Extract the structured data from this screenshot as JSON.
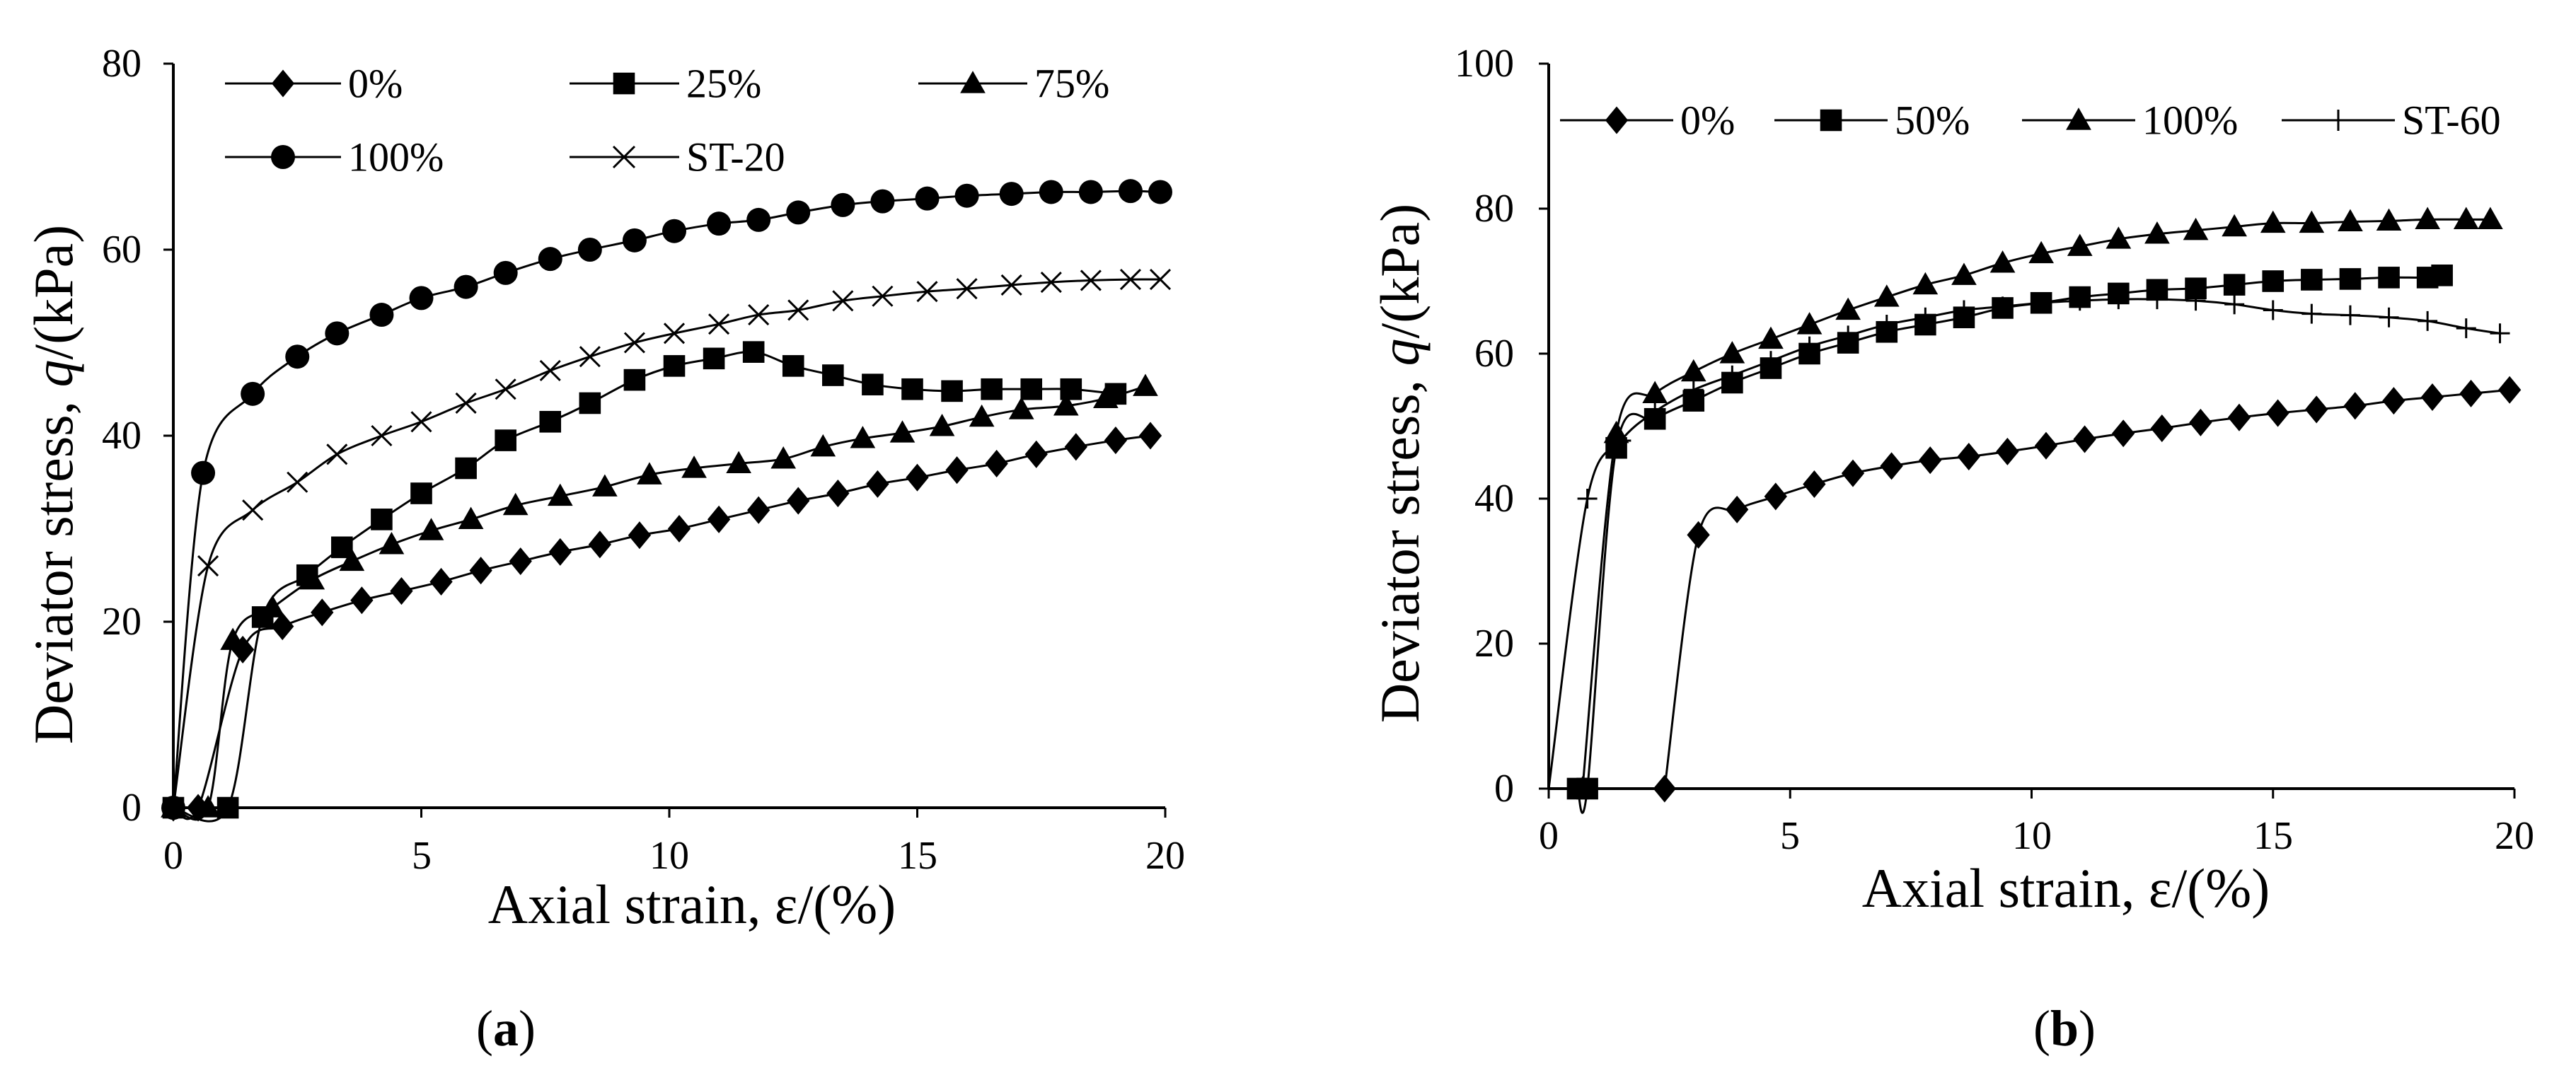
{
  "colors": {
    "ink": "#000000",
    "background": "#ffffff"
  },
  "chart_data": [
    {
      "panel": "a",
      "panel_label": "a",
      "type": "line",
      "xlabel": "Axial strain, ε/(%)",
      "ylabel_prefix": "Deviator stress, ",
      "ylabel_italic": "q",
      "ylabel_suffix": "/(kPa)",
      "xlim": [
        0,
        20
      ],
      "ylim": [
        0,
        80
      ],
      "xticks": [
        0,
        5,
        10,
        15,
        20
      ],
      "yticks": [
        0,
        20,
        40,
        60,
        80
      ],
      "grid": false,
      "legend": "top-left, inside",
      "series": [
        {
          "name": "0%",
          "marker": "diamond",
          "x": [
            0,
            0.5,
            1.4,
            2.2,
            3.0,
            3.8,
            4.6,
            5.4,
            6.2,
            7.0,
            7.8,
            8.6,
            9.4,
            10.2,
            11.0,
            11.8,
            12.6,
            13.4,
            14.2,
            15.0,
            15.8,
            16.6,
            17.4,
            18.2,
            19.0,
            19.7
          ],
          "y": [
            0,
            0,
            17,
            19.5,
            21,
            22.3,
            23.3,
            24.3,
            25.5,
            26.5,
            27.5,
            28.3,
            29.3,
            30,
            31,
            32,
            33,
            33.8,
            34.8,
            35.5,
            36.3,
            37,
            38,
            38.8,
            39.5,
            40
          ]
        },
        {
          "name": "25%",
          "marker": "square",
          "x": [
            0,
            1.1,
            1.8,
            2.7,
            3.4,
            4.2,
            5.0,
            5.9,
            6.7,
            7.6,
            8.4,
            9.3,
            10.1,
            10.9,
            11.7,
            12.5,
            13.3,
            14.1,
            14.9,
            15.7,
            16.5,
            17.3,
            18.1,
            19.0
          ],
          "y": [
            0,
            0,
            20.5,
            25,
            28,
            31,
            33.8,
            36.5,
            39.5,
            41.5,
            43.5,
            46,
            47.5,
            48.3,
            49,
            47.5,
            46.5,
            45.5,
            45,
            44.8,
            45,
            45,
            45,
            44.5
          ]
        },
        {
          "name": "75%",
          "marker": "triangle",
          "x": [
            0,
            0.7,
            1.2,
            2.0,
            2.8,
            3.6,
            4.4,
            5.2,
            6.0,
            6.9,
            7.8,
            8.7,
            9.6,
            10.5,
            11.4,
            12.3,
            13.1,
            13.9,
            14.7,
            15.5,
            16.3,
            17.1,
            18.0,
            18.8,
            19.6
          ],
          "y": [
            0,
            0,
            18,
            21.5,
            24.5,
            26.5,
            28.3,
            29.8,
            31,
            32.5,
            33.5,
            34.5,
            35.8,
            36.5,
            37,
            37.5,
            38.8,
            39.7,
            40.3,
            41,
            42,
            42.8,
            43.2,
            44,
            45.3
          ]
        },
        {
          "name": "100%",
          "marker": "circle",
          "x": [
            0,
            0.6,
            1.6,
            2.5,
            3.3,
            4.2,
            5.0,
            5.9,
            6.7,
            7.6,
            8.4,
            9.3,
            10.1,
            11.0,
            11.8,
            12.6,
            13.5,
            14.3,
            15.2,
            16.0,
            16.9,
            17.7,
            18.5,
            19.3,
            19.9
          ],
          "y": [
            0,
            36,
            44.5,
            48.5,
            51,
            53,
            54.8,
            56,
            57.5,
            59,
            60,
            61,
            62,
            62.8,
            63.2,
            64,
            64.8,
            65.2,
            65.5,
            65.8,
            66,
            66.2,
            66.2,
            66.3,
            66.2
          ]
        },
        {
          "name": "ST-20",
          "marker": "cross",
          "x": [
            0,
            0.7,
            1.6,
            2.5,
            3.3,
            4.2,
            5.0,
            5.9,
            6.7,
            7.6,
            8.4,
            9.3,
            10.1,
            11.0,
            11.8,
            12.6,
            13.5,
            14.3,
            15.2,
            16.0,
            16.9,
            17.7,
            18.5,
            19.3,
            19.9
          ],
          "y": [
            0,
            26,
            32,
            35,
            38,
            40,
            41.5,
            43.5,
            45,
            47,
            48.5,
            50,
            51,
            52,
            53,
            53.5,
            54.5,
            55,
            55.5,
            55.8,
            56.2,
            56.5,
            56.7,
            56.8,
            56.8
          ]
        }
      ]
    },
    {
      "panel": "b",
      "panel_label": "b",
      "type": "line",
      "xlabel": "Axial strain, ε/(%)",
      "ylabel_prefix": "Deviator stress, ",
      "ylabel_italic": "q",
      "ylabel_suffix": "/(kPa)",
      "xlim": [
        0,
        20
      ],
      "ylim": [
        0,
        100
      ],
      "xticks": [
        0,
        5,
        10,
        15,
        20
      ],
      "yticks": [
        0,
        20,
        40,
        60,
        80,
        100
      ],
      "grid": false,
      "legend": "top, inside",
      "series": [
        {
          "name": "0%",
          "marker": "diamond",
          "x": [
            2.4,
            3.1,
            3.9,
            4.7,
            5.5,
            6.3,
            7.1,
            7.9,
            8.7,
            9.5,
            10.3,
            11.1,
            11.9,
            12.7,
            13.5,
            14.3,
            15.1,
            15.9,
            16.7,
            17.5,
            18.3,
            19.1,
            19.9
          ],
          "y": [
            0,
            35,
            38.5,
            40.3,
            42,
            43.5,
            44.5,
            45.3,
            45.8,
            46.5,
            47.3,
            48.2,
            49,
            49.7,
            50.5,
            51.2,
            51.8,
            52.3,
            52.8,
            53.5,
            54,
            54.5,
            55
          ]
        },
        {
          "name": "50%",
          "marker": "square",
          "x": [
            0.6,
            0.8,
            1.4,
            2.2,
            3.0,
            3.8,
            4.6,
            5.4,
            6.2,
            7.0,
            7.8,
            8.6,
            9.4,
            10.2,
            11.0,
            11.8,
            12.6,
            13.4,
            14.2,
            15.0,
            15.8,
            16.6,
            17.4,
            18.2,
            18.5
          ],
          "y": [
            0,
            0,
            47,
            51,
            53.5,
            56,
            58,
            60,
            61.5,
            63,
            64,
            65,
            66.3,
            67,
            67.8,
            68.3,
            68.8,
            69,
            69.5,
            70,
            70.2,
            70.3,
            70.5,
            70.5,
            70.8
          ]
        },
        {
          "name": "100%",
          "marker": "triangle",
          "x": [
            0.7,
            1.4,
            2.2,
            3.0,
            3.8,
            4.6,
            5.4,
            6.2,
            7.0,
            7.8,
            8.6,
            9.4,
            10.2,
            11.0,
            11.8,
            12.6,
            13.4,
            14.2,
            15.0,
            15.8,
            16.6,
            17.4,
            18.2,
            19.0,
            19.5
          ],
          "y": [
            0,
            49,
            54.5,
            57.5,
            60,
            62,
            64,
            66,
            67.8,
            69.5,
            70.8,
            72.5,
            73.8,
            74.8,
            75.8,
            76.5,
            77,
            77.5,
            78,
            78,
            78.2,
            78.3,
            78.5,
            78.5,
            78.5
          ]
        },
        {
          "name": "ST-60",
          "marker": "plus",
          "x": [
            0,
            0.8,
            1.5,
            2.2,
            3.0,
            3.8,
            4.6,
            5.4,
            6.2,
            7.0,
            7.8,
            8.6,
            9.4,
            10.2,
            11.0,
            11.8,
            12.6,
            13.4,
            14.2,
            15.0,
            15.8,
            16.6,
            17.4,
            18.2,
            19.0,
            19.7
          ],
          "y": [
            0,
            40,
            48,
            52,
            55,
            57,
            59,
            61,
            62.5,
            64,
            65,
            66,
            66.5,
            67,
            67.3,
            67.5,
            67.5,
            67.3,
            66.8,
            66,
            65.5,
            65.3,
            65,
            64.5,
            63.5,
            62.8
          ]
        }
      ]
    }
  ]
}
